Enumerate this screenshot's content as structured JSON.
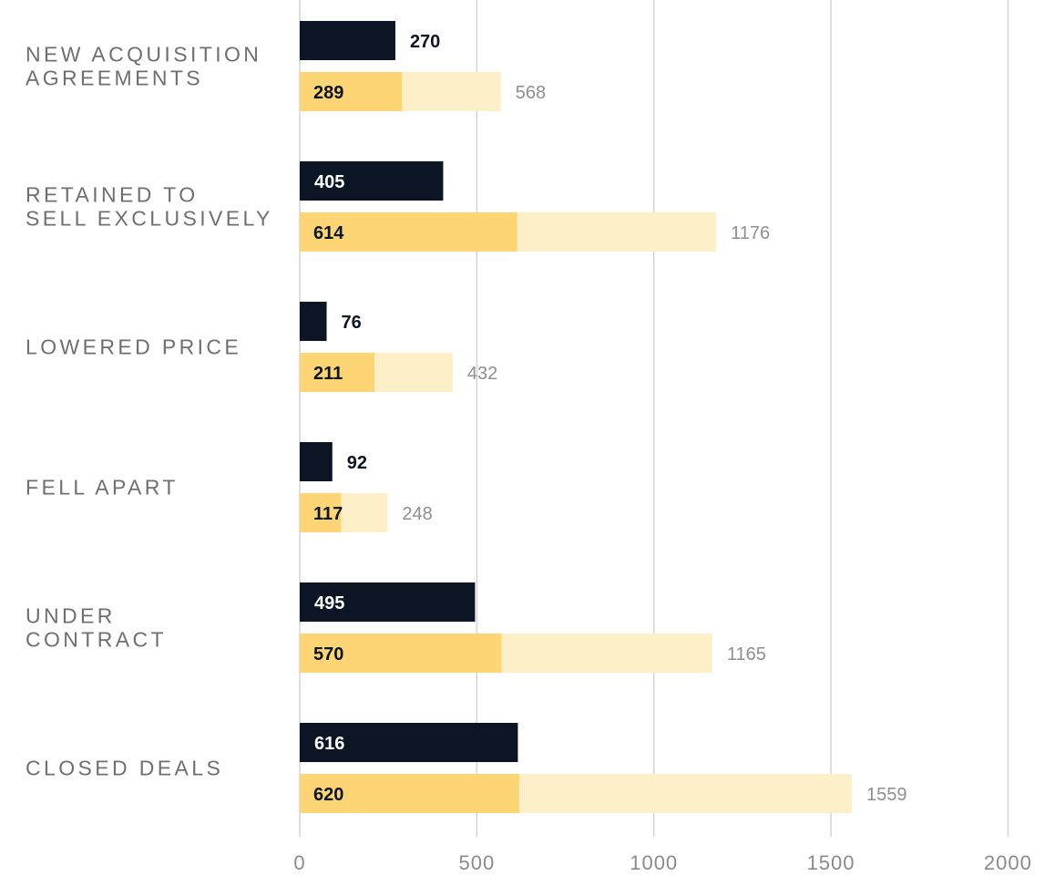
{
  "chart_data": {
    "type": "bar",
    "orientation": "horizontal",
    "categories": [
      [
        "NEW ACQUISITION",
        "AGREEMENTS"
      ],
      [
        "RETAINED TO",
        "SELL EXCLUSIVELY"
      ],
      [
        "LOWERED PRICE"
      ],
      [
        "FELL APART"
      ],
      [
        "UNDER",
        "CONTRACT"
      ],
      [
        "CLOSED DEALS"
      ]
    ],
    "series": [
      {
        "values": [
          270,
          405,
          76,
          92,
          495,
          616
        ],
        "color": "#0b1523"
      },
      {
        "values": [
          289,
          614,
          211,
          117,
          570,
          620
        ],
        "color": "#fdd574"
      },
      {
        "values": [
          568,
          1176,
          432,
          248,
          1165,
          1559
        ],
        "color": "#fdf0c8"
      }
    ],
    "xlim": [
      0,
      2000
    ],
    "xticks": [
      "0",
      "500",
      "1000",
      "1500",
      "2000"
    ],
    "grid": true,
    "xlabel": "",
    "ylabel": "",
    "title": ""
  }
}
